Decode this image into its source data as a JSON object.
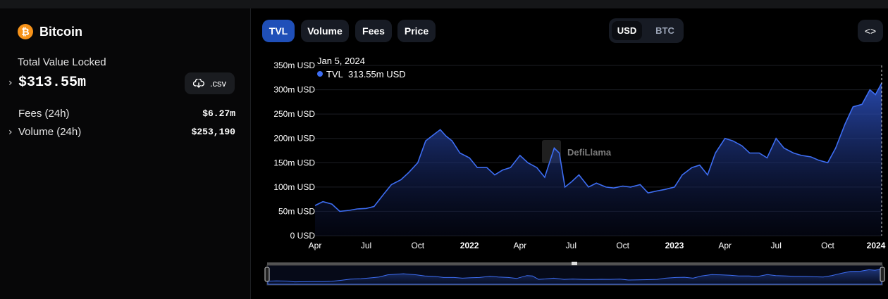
{
  "protocol": {
    "name": "Bitcoin",
    "logo_glyph": "₿",
    "logo_color": "#f7931a"
  },
  "tvl": {
    "label": "Total Value Locked",
    "value": "$313.55m"
  },
  "csv_button": {
    "label": ".csv",
    "icon": "download-cloud-icon"
  },
  "metrics": [
    {
      "label": "Fees (24h)",
      "value": "$6.27m",
      "expandable": false
    },
    {
      "label": "Volume (24h)",
      "value": "$253,190",
      "expandable": true
    }
  ],
  "tabs": [
    "TVL",
    "Volume",
    "Fees",
    "Price"
  ],
  "active_tab": "TVL",
  "currency": {
    "options": [
      "USD",
      "BTC"
    ],
    "selected": "USD"
  },
  "embed_button": {
    "label": "<>",
    "icon": "code-icon"
  },
  "watermark": "DefiLlama",
  "colors": {
    "accent": "#1f4fb8",
    "line": "#3d6df2"
  },
  "chart_data": {
    "type": "area",
    "series": [
      {
        "name": "TVL",
        "unit": "USD"
      }
    ],
    "tooltip": {
      "date": "Jan 5, 2024",
      "series": "TVL",
      "value": "313.55m USD"
    },
    "ylim": [
      0,
      350
    ],
    "yticks": [
      "0 USD",
      "50m USD",
      "100m USD",
      "150m USD",
      "200m USD",
      "250m USD",
      "300m USD",
      "350m USD"
    ],
    "xticks": [
      {
        "label": "Apr",
        "date": "2021-04-01",
        "bold": false
      },
      {
        "label": "Jul",
        "date": "2021-07-01",
        "bold": false
      },
      {
        "label": "Oct",
        "date": "2021-10-01",
        "bold": false
      },
      {
        "label": "2022",
        "date": "2022-01-01",
        "bold": true
      },
      {
        "label": "Apr",
        "date": "2022-04-01",
        "bold": false
      },
      {
        "label": "Jul",
        "date": "2022-07-01",
        "bold": false
      },
      {
        "label": "Oct",
        "date": "2022-10-01",
        "bold": false
      },
      {
        "label": "2023",
        "date": "2023-01-01",
        "bold": true
      },
      {
        "label": "Apr",
        "date": "2023-04-01",
        "bold": false
      },
      {
        "label": "Jul",
        "date": "2023-07-01",
        "bold": false
      },
      {
        "label": "Oct",
        "date": "2023-10-01",
        "bold": false
      },
      {
        "label": "2024",
        "date": "2024-01-01",
        "bold": true
      }
    ],
    "xrange": [
      "2021-04-01",
      "2024-01-05"
    ],
    "points": [
      [
        "2021-04-01",
        62
      ],
      [
        "2021-04-15",
        70
      ],
      [
        "2021-05-01",
        65
      ],
      [
        "2021-05-15",
        50
      ],
      [
        "2021-06-01",
        52
      ],
      [
        "2021-06-15",
        55
      ],
      [
        "2021-07-01",
        56
      ],
      [
        "2021-07-15",
        60
      ],
      [
        "2021-08-01",
        85
      ],
      [
        "2021-08-15",
        105
      ],
      [
        "2021-09-01",
        115
      ],
      [
        "2021-09-15",
        130
      ],
      [
        "2021-10-01",
        150
      ],
      [
        "2021-10-15",
        195
      ],
      [
        "2021-11-01",
        210
      ],
      [
        "2021-11-10",
        218
      ],
      [
        "2021-11-20",
        205
      ],
      [
        "2021-12-01",
        195
      ],
      [
        "2021-12-15",
        170
      ],
      [
        "2022-01-01",
        160
      ],
      [
        "2022-01-15",
        140
      ],
      [
        "2022-02-01",
        140
      ],
      [
        "2022-02-15",
        125
      ],
      [
        "2022-03-01",
        135
      ],
      [
        "2022-03-15",
        140
      ],
      [
        "2022-04-01",
        165
      ],
      [
        "2022-04-15",
        150
      ],
      [
        "2022-05-01",
        140
      ],
      [
        "2022-05-15",
        120
      ],
      [
        "2022-06-01",
        180
      ],
      [
        "2022-06-10",
        170
      ],
      [
        "2022-06-20",
        100
      ],
      [
        "2022-07-01",
        110
      ],
      [
        "2022-07-15",
        125
      ],
      [
        "2022-08-01",
        100
      ],
      [
        "2022-08-15",
        108
      ],
      [
        "2022-09-01",
        100
      ],
      [
        "2022-09-15",
        98
      ],
      [
        "2022-10-01",
        102
      ],
      [
        "2022-10-15",
        100
      ],
      [
        "2022-11-01",
        105
      ],
      [
        "2022-11-15",
        88
      ],
      [
        "2022-12-01",
        92
      ],
      [
        "2022-12-15",
        95
      ],
      [
        "2023-01-01",
        100
      ],
      [
        "2023-01-15",
        125
      ],
      [
        "2023-02-01",
        140
      ],
      [
        "2023-02-15",
        145
      ],
      [
        "2023-03-01",
        125
      ],
      [
        "2023-03-15",
        170
      ],
      [
        "2023-04-01",
        200
      ],
      [
        "2023-04-15",
        195
      ],
      [
        "2023-05-01",
        185
      ],
      [
        "2023-05-15",
        170
      ],
      [
        "2023-06-01",
        170
      ],
      [
        "2023-06-15",
        160
      ],
      [
        "2023-07-01",
        200
      ],
      [
        "2023-07-15",
        180
      ],
      [
        "2023-08-01",
        170
      ],
      [
        "2023-08-15",
        165
      ],
      [
        "2023-09-01",
        162
      ],
      [
        "2023-09-15",
        155
      ],
      [
        "2023-10-01",
        150
      ],
      [
        "2023-10-15",
        180
      ],
      [
        "2023-11-01",
        230
      ],
      [
        "2023-11-15",
        265
      ],
      [
        "2023-12-01",
        270
      ],
      [
        "2023-12-15",
        300
      ],
      [
        "2023-12-25",
        290
      ],
      [
        "2024-01-05",
        313.55
      ]
    ]
  }
}
